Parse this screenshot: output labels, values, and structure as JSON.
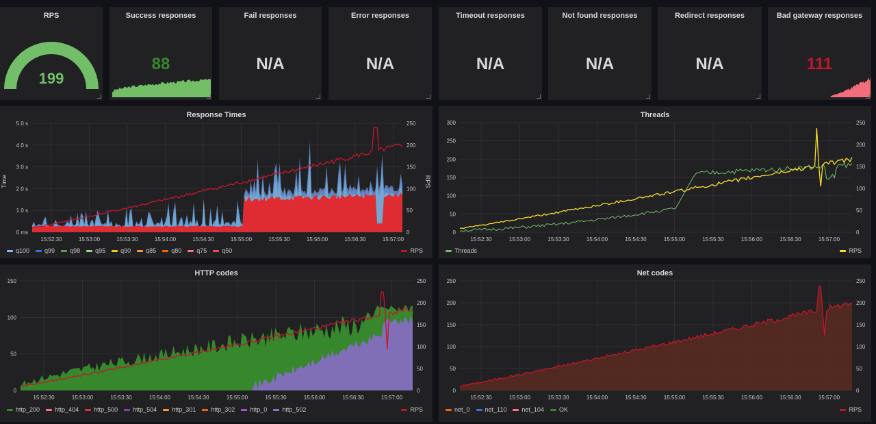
{
  "stats": [
    {
      "title": "RPS",
      "value": "199",
      "color": "#73bf69"
    },
    {
      "title": "Success responses",
      "value": "88",
      "color": "#37872d"
    },
    {
      "title": "Fail responses",
      "value": "N/A",
      "color": "#d8d9da"
    },
    {
      "title": "Error responses",
      "value": "N/A",
      "color": "#d8d9da"
    },
    {
      "title": "Timeout responses",
      "value": "N/A",
      "color": "#d8d9da"
    },
    {
      "title": "Not found responses",
      "value": "N/A",
      "color": "#d8d9da"
    },
    {
      "title": "Redirect responses",
      "value": "N/A",
      "color": "#d8d9da"
    },
    {
      "title": "Bad gateway responses",
      "value": "111",
      "color": "#c4162a"
    }
  ],
  "time_labels": [
    "15:52:30",
    "15:53:00",
    "15:53:30",
    "15:54:00",
    "15:54:30",
    "15:55:00",
    "15:55:30",
    "15:56:00",
    "15:56:30",
    "15:57:00"
  ],
  "response_times": {
    "title": "Response Times",
    "y_left_label": "Time",
    "y_right_label": "RPS",
    "y_left_ticks": [
      "0 ms",
      "1.0 s",
      "2.0 s",
      "3.0 s",
      "4.0 s",
      "5.0 s"
    ],
    "y_right_ticks": [
      "0",
      "50",
      "100",
      "150",
      "200",
      "250"
    ],
    "legend": [
      {
        "name": "q100",
        "color": "#8ab8ff"
      },
      {
        "name": "q99",
        "color": "#3274d9"
      },
      {
        "name": "q98",
        "color": "#56a64b"
      },
      {
        "name": "q95",
        "color": "#96d98d"
      },
      {
        "name": "q90",
        "color": "#f2cc0c"
      },
      {
        "name": "q85",
        "color": "#ff9830"
      },
      {
        "name": "q80",
        "color": "#fa6400"
      },
      {
        "name": "q75",
        "color": "#ff7383"
      },
      {
        "name": "q50",
        "color": "#f2495c"
      }
    ],
    "right_legend": {
      "name": "RPS",
      "color": "#c4162a"
    }
  },
  "threads": {
    "title": "Threads",
    "y_left_ticks": [
      "0",
      "50",
      "100",
      "150",
      "200",
      "250",
      "300"
    ],
    "y_right_ticks": [
      "0",
      "50",
      "100",
      "150",
      "200",
      "250"
    ],
    "legend": [
      {
        "name": "Threads",
        "color": "#73bf69"
      }
    ],
    "right_legend": {
      "name": "RPS",
      "color": "#fade2a"
    }
  },
  "http_codes": {
    "title": "HTTP codes",
    "y_left_ticks": [
      "0",
      "50",
      "100",
      "150"
    ],
    "y_right_ticks": [
      "0",
      "50",
      "100",
      "150",
      "200",
      "250"
    ],
    "legend": [
      {
        "name": "http_200",
        "color": "#37872d"
      },
      {
        "name": "http_404",
        "color": "#ff7383"
      },
      {
        "name": "http_500",
        "color": "#e02f44"
      },
      {
        "name": "http_504",
        "color": "#8f3bb8"
      },
      {
        "name": "http_301",
        "color": "#ff9830"
      },
      {
        "name": "http_302",
        "color": "#fa6400"
      },
      {
        "name": "http_0",
        "color": "#a352cc"
      },
      {
        "name": "http_502",
        "color": "#8f75c5"
      }
    ],
    "right_legend": {
      "name": "RPS",
      "color": "#c4162a"
    }
  },
  "net_codes": {
    "title": "Net codes",
    "y_left_ticks": [
      "0",
      "50",
      "100",
      "150",
      "200",
      "250"
    ],
    "y_right_ticks": [
      "0",
      "50",
      "100",
      "150",
      "200",
      "250"
    ],
    "legend": [
      {
        "name": "net_0",
        "color": "#fa6400"
      },
      {
        "name": "net_110",
        "color": "#3274d9"
      },
      {
        "name": "net_104",
        "color": "#ff7383"
      },
      {
        "name": "OK",
        "color": "#37872d"
      }
    ],
    "right_legend": {
      "name": "RPS",
      "color": "#c4162a"
    }
  }
}
